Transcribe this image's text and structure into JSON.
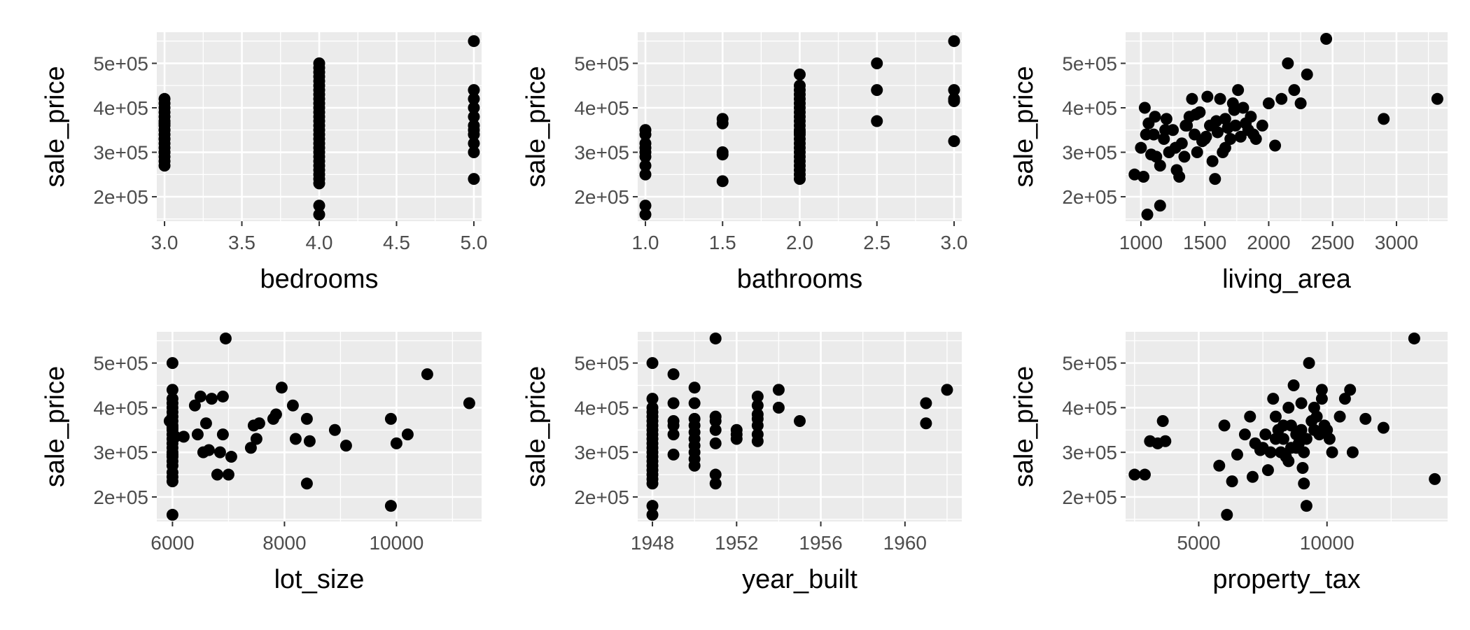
{
  "chart_data": [
    {
      "type": "scatter",
      "xlabel": "bedrooms",
      "ylabel": "sale_price",
      "xlim": [
        2.95,
        5.05
      ],
      "ylim": [
        145000,
        570000
      ],
      "x_ticks": [
        3.0,
        3.5,
        4.0,
        4.5,
        5.0
      ],
      "x_tick_labels": [
        "3.0",
        "3.5",
        "4.0",
        "4.5",
        "5.0"
      ],
      "y_ticks": [
        200000,
        300000,
        400000,
        500000
      ],
      "y_tick_labels": [
        "2e+05",
        "3e+05",
        "4e+05",
        "5e+05"
      ],
      "grid": true,
      "x": [
        3,
        3,
        3,
        3,
        3,
        3,
        3,
        3,
        3,
        3,
        3,
        3,
        3,
        3,
        3,
        3,
        3,
        3,
        3,
        3,
        4,
        4,
        4,
        4,
        4,
        4,
        4,
        4,
        4,
        4,
        4,
        4,
        4,
        4,
        4,
        4,
        4,
        4,
        4,
        4,
        4,
        4,
        4,
        4,
        4,
        4,
        4,
        4,
        4,
        4,
        5,
        5,
        5,
        5,
        5,
        5,
        5,
        5,
        5,
        5,
        5
      ],
      "y": [
        270000,
        280000,
        290000,
        300000,
        310000,
        320000,
        330000,
        340000,
        350000,
        360000,
        365000,
        370000,
        380000,
        390000,
        400000,
        410000,
        420000,
        300000,
        330000,
        350000,
        160000,
        180000,
        230000,
        240000,
        250000,
        260000,
        270000,
        280000,
        290000,
        300000,
        310000,
        320000,
        330000,
        340000,
        350000,
        360000,
        370000,
        380000,
        390000,
        400000,
        410000,
        420000,
        430000,
        440000,
        450000,
        460000,
        470000,
        480000,
        490000,
        500000,
        240000,
        300000,
        320000,
        340000,
        360000,
        380000,
        400000,
        420000,
        440000,
        550000,
        350000
      ]
    },
    {
      "type": "scatter",
      "xlabel": "bathrooms",
      "ylabel": "sale_price",
      "xlim": [
        0.95,
        3.05
      ],
      "ylim": [
        145000,
        570000
      ],
      "x_ticks": [
        1.0,
        1.5,
        2.0,
        2.5,
        3.0
      ],
      "x_tick_labels": [
        "1.0",
        "1.5",
        "2.0",
        "2.5",
        "3.0"
      ],
      "y_ticks": [
        200000,
        300000,
        400000,
        500000
      ],
      "y_tick_labels": [
        "2e+05",
        "3e+05",
        "4e+05",
        "5e+05"
      ],
      "grid": true,
      "x": [
        1,
        1,
        1,
        1,
        1,
        1,
        1,
        1,
        1,
        1,
        1.5,
        1.5,
        1.5,
        1.5,
        1.5,
        2,
        2,
        2,
        2,
        2,
        2,
        2,
        2,
        2,
        2,
        2,
        2,
        2,
        2,
        2,
        2,
        2,
        2,
        2,
        2,
        2,
        2,
        2,
        2,
        2.5,
        2.5,
        2.5,
        3,
        3,
        3,
        3,
        3
      ],
      "y": [
        160000,
        180000,
        250000,
        270000,
        290000,
        300000,
        310000,
        320000,
        340000,
        350000,
        235000,
        295000,
        300000,
        365000,
        375000,
        240000,
        250000,
        260000,
        270000,
        280000,
        290000,
        300000,
        310000,
        320000,
        330000,
        340000,
        350000,
        360000,
        370000,
        380000,
        390000,
        400000,
        410000,
        420000,
        430000,
        440000,
        450000,
        475000,
        345000,
        370000,
        440000,
        500000,
        325000,
        420000,
        440000,
        550000,
        415000
      ]
    },
    {
      "type": "scatter",
      "xlabel": "living_area",
      "ylabel": "sale_price",
      "xlim": [
        880,
        3400
      ],
      "ylim": [
        145000,
        570000
      ],
      "x_ticks": [
        1000,
        1500,
        2000,
        2500,
        3000
      ],
      "x_tick_labels": [
        "1000",
        "1500",
        "2000",
        "2500",
        "3000"
      ],
      "y_ticks": [
        200000,
        300000,
        400000,
        500000
      ],
      "y_tick_labels": [
        "2e+05",
        "3e+05",
        "4e+05",
        "5e+05"
      ],
      "grid": true,
      "x": [
        950,
        1020,
        1050,
        1080,
        1150,
        1000,
        1030,
        1060,
        1100,
        1120,
        1150,
        1180,
        1200,
        1220,
        1250,
        1280,
        1300,
        1320,
        1340,
        1360,
        1380,
        1400,
        1420,
        1440,
        1460,
        1480,
        1500,
        1520,
        1540,
        1560,
        1580,
        1600,
        1620,
        1640,
        1660,
        1680,
        1700,
        1720,
        1740,
        1760,
        1780,
        1800,
        1820,
        1840,
        1860,
        1880,
        1900,
        1950,
        2000,
        2050,
        2100,
        2150,
        2200,
        2250,
        2300,
        2450,
        2900,
        3320,
        1040,
        1110,
        1190,
        1270,
        1350,
        1430,
        1510,
        1590,
        1660,
        1730
      ],
      "y": [
        250000,
        245000,
        160000,
        295000,
        180000,
        310000,
        400000,
        365000,
        340000,
        290000,
        270000,
        330000,
        375000,
        300000,
        350000,
        260000,
        245000,
        320000,
        290000,
        360000,
        380000,
        420000,
        340000,
        300000,
        390000,
        325000,
        330000,
        425000,
        360000,
        280000,
        240000,
        345000,
        420000,
        300000,
        375000,
        355000,
        330000,
        410000,
        360000,
        440000,
        335000,
        400000,
        365000,
        350000,
        380000,
        340000,
        330000,
        360000,
        410000,
        315000,
        420000,
        500000,
        440000,
        410000,
        475000,
        555000,
        375000,
        420000,
        340000,
        380000,
        350000,
        310000,
        360000,
        385000,
        335000,
        370000,
        310000,
        395000
      ]
    },
    {
      "type": "scatter",
      "xlabel": "lot_size",
      "ylabel": "sale_price",
      "xlim": [
        5720,
        11520
      ],
      "ylim": [
        145000,
        570000
      ],
      "x_ticks": [
        6000,
        8000,
        10000
      ],
      "x_tick_labels": [
        "6000",
        "8000",
        "10000"
      ],
      "y_ticks": [
        200000,
        300000,
        400000,
        500000
      ],
      "y_tick_labels": [
        "2e+05",
        "3e+05",
        "4e+05",
        "5e+05"
      ],
      "grid": true,
      "x": [
        6000,
        6000,
        6000,
        6000,
        6000,
        6000,
        6000,
        6000,
        6000,
        6000,
        6000,
        6000,
        6000,
        6000,
        6000,
        6000,
        6000,
        6000,
        6000,
        6000,
        6000,
        6000,
        5950,
        6050,
        6200,
        6400,
        6450,
        6500,
        6550,
        6600,
        6650,
        6700,
        6800,
        6850,
        6900,
        6900,
        6950,
        7000,
        7050,
        7400,
        7450,
        7500,
        7550,
        7800,
        7850,
        7950,
        8150,
        8200,
        8400,
        8400,
        8450,
        8900,
        9100,
        9900,
        9900,
        10000,
        10200,
        10550,
        11300,
        6000,
        6000
      ],
      "y": [
        160000,
        235000,
        245000,
        255000,
        270000,
        280000,
        290000,
        300000,
        310000,
        320000,
        330000,
        340000,
        350000,
        360000,
        370000,
        380000,
        390000,
        400000,
        410000,
        420000,
        440000,
        500000,
        370000,
        335000,
        335000,
        405000,
        340000,
        425000,
        300000,
        365000,
        305000,
        420000,
        250000,
        300000,
        340000,
        425000,
        555000,
        250000,
        290000,
        310000,
        360000,
        330000,
        365000,
        375000,
        385000,
        445000,
        405000,
        330000,
        375000,
        230000,
        325000,
        350000,
        315000,
        180000,
        375000,
        320000,
        340000,
        475000,
        410000,
        295000,
        355000
      ]
    },
    {
      "type": "scatter",
      "xlabel": "year_built",
      "ylabel": "sale_price",
      "xlim": [
        1947.3,
        1962.7
      ],
      "ylim": [
        145000,
        570000
      ],
      "x_ticks": [
        1948,
        1952,
        1956,
        1960
      ],
      "x_tick_labels": [
        "1948",
        "1952",
        "1956",
        "1960"
      ],
      "y_ticks": [
        200000,
        300000,
        400000,
        500000
      ],
      "y_tick_labels": [
        "2e+05",
        "3e+05",
        "4e+05",
        "5e+05"
      ],
      "grid": true,
      "x": [
        1948,
        1948,
        1948,
        1948,
        1948,
        1948,
        1948,
        1948,
        1948,
        1948,
        1948,
        1948,
        1948,
        1948,
        1948,
        1948,
        1948,
        1948,
        1948,
        1948,
        1948,
        1948,
        1949,
        1949,
        1949,
        1949,
        1949,
        1949,
        1950,
        1950,
        1950,
        1950,
        1950,
        1950,
        1950,
        1950,
        1950,
        1950,
        1951,
        1951,
        1951,
        1951,
        1951,
        1951,
        1951,
        1952,
        1952,
        1952,
        1953,
        1953,
        1953,
        1953,
        1953,
        1953,
        1953,
        1954,
        1954,
        1955,
        1961,
        1961,
        1962
      ],
      "y": [
        160000,
        180000,
        230000,
        240000,
        250000,
        260000,
        270000,
        280000,
        290000,
        300000,
        310000,
        320000,
        330000,
        340000,
        350000,
        360000,
        370000,
        380000,
        390000,
        400000,
        420000,
        500000,
        295000,
        340000,
        360000,
        370000,
        410000,
        475000,
        270000,
        285000,
        300000,
        315000,
        330000,
        345000,
        360000,
        375000,
        410000,
        445000,
        230000,
        250000,
        320000,
        350000,
        370000,
        380000,
        555000,
        330000,
        340000,
        350000,
        325000,
        340000,
        360000,
        375000,
        385000,
        405000,
        425000,
        400000,
        440000,
        370000,
        365000,
        410000,
        440000
      ]
    },
    {
      "type": "scatter",
      "xlabel": "property_tax",
      "ylabel": "sale_price",
      "xlim": [
        2150,
        14700
      ],
      "ylim": [
        145000,
        570000
      ],
      "x_ticks": [
        5000,
        10000
      ],
      "x_tick_labels": [
        "5000",
        "10000"
      ],
      "y_ticks": [
        200000,
        300000,
        400000,
        500000
      ],
      "y_tick_labels": [
        "2e+05",
        "3e+05",
        "4e+05",
        "5e+05"
      ],
      "grid": true,
      "x": [
        2500,
        2900,
        3100,
        3400,
        3600,
        3700,
        5800,
        6000,
        6100,
        6300,
        6500,
        6800,
        7000,
        7200,
        7500,
        7600,
        7700,
        7800,
        7900,
        8000,
        8100,
        8200,
        8300,
        8400,
        8500,
        8600,
        8700,
        8800,
        8900,
        9000,
        9100,
        9200,
        9300,
        9400,
        9500,
        9600,
        9700,
        9800,
        9900,
        10000,
        10100,
        10200,
        10500,
        10700,
        10900,
        11000,
        11500,
        12200,
        13400,
        14200,
        8500,
        8800,
        9000,
        9100,
        9200,
        8600,
        8900,
        8300,
        8000,
        9050,
        9500,
        9800,
        7400,
        7100
      ],
      "y": [
        250000,
        250000,
        325000,
        320000,
        370000,
        325000,
        270000,
        360000,
        160000,
        235000,
        295000,
        340000,
        380000,
        320000,
        310000,
        340000,
        260000,
        300000,
        420000,
        380000,
        350000,
        300000,
        330000,
        290000,
        280000,
        360000,
        450000,
        340000,
        320000,
        410000,
        230000,
        180000,
        500000,
        370000,
        350000,
        380000,
        340000,
        440000,
        360000,
        350000,
        330000,
        300000,
        380000,
        420000,
        440000,
        300000,
        375000,
        355000,
        555000,
        240000,
        400000,
        310000,
        350000,
        300000,
        330000,
        310000,
        345000,
        360000,
        330000,
        265000,
        400000,
        420000,
        305000,
        245000
      ]
    }
  ]
}
